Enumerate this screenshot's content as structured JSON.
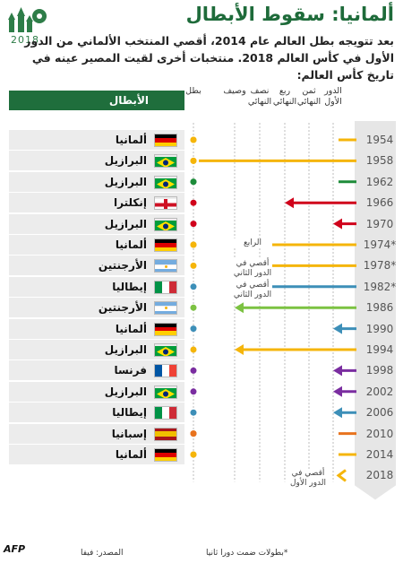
{
  "title": "ألمانيا: سقوط الأبطال",
  "subtitle": "بعد تتويجه بطل العالم عام 2014، أقصي المنتخب الألماني من الدور الأول في كأس العالم 2018. منتخبات أخرى لقيت المصير عينه في تاريخ كأس العالم:",
  "logo": {
    "year": "2018",
    "icon": "world-cup-2018-logo"
  },
  "column_header": "الأبطال",
  "stage_labels": [
    "الدور الأول",
    "ثمن النهائي",
    "ربع النهائي",
    "نصف النهائي",
    "وصيف",
    "بطل"
  ],
  "footer": {
    "note": "*بطولات ضمت دورا ثانيا",
    "source": "المصدر: فيفا",
    "agency": "AFP"
  },
  "colors": {
    "brand_green": "#1f6e3c",
    "first_round_red": "#d0021b",
    "arrow_bg": "#e6e6e6"
  },
  "chart_data": {
    "type": "timeline",
    "title": "ألمانيا: سقوط الأبطال",
    "stages": [
      "الدور الأول",
      "ثمن النهائي",
      "ربع النهائي",
      "نصف النهائي",
      "وصيف",
      "بطل"
    ],
    "rows": [
      {
        "champion_year": "1954",
        "team": "ألمانيا",
        "flag": "germany",
        "color": "#f5b50a",
        "start": "champion",
        "end": "first",
        "end_marker": "circle",
        "note": ""
      },
      {
        "champion_year": "1958",
        "team": "البرازيل",
        "flag": "brazil",
        "color": "#f5b50a",
        "start": "champion",
        "end": "champion",
        "end_marker": "circle",
        "note": ""
      },
      {
        "champion_year": "1962",
        "team": "البرازيل",
        "flag": "brazil",
        "color": "#1e8c3a",
        "start": "champion",
        "end": "first",
        "end_marker": "circle",
        "note": ""
      },
      {
        "champion_year": "1966",
        "team": "إنكلترا",
        "flag": "england",
        "color": "#d0021b",
        "start": "champion",
        "end": "quarter",
        "end_marker": "arrow",
        "note": ""
      },
      {
        "champion_year": "1970",
        "team": "البرازيل",
        "flag": "brazil",
        "color": "#d0021b",
        "start": "champion",
        "end": "first",
        "end_marker": "arrow",
        "note": ""
      },
      {
        "champion_year": "1974*",
        "team": "ألمانيا",
        "flag": "germany",
        "color": "#f5b50a",
        "start": "champion",
        "end": "second_round",
        "end_marker": "circle",
        "note": "الرابع"
      },
      {
        "champion_year": "1978*",
        "team": "الأرجنتين",
        "flag": "argentina",
        "color": "#f5b50a",
        "start": "champion",
        "end": "second_round",
        "end_marker": "arrow",
        "note": "أقصي في الدور الثاني"
      },
      {
        "champion_year": "1982*",
        "team": "إيطاليا",
        "flag": "italy",
        "color": "#3d8fb8",
        "start": "champion",
        "end": "second_round",
        "end_marker": "arrow",
        "note": "أقصي في الدور الثاني"
      },
      {
        "champion_year": "1986",
        "team": "الأرجنتين",
        "flag": "argentina",
        "color": "#7cc242",
        "start": "champion",
        "end": "runner_up",
        "end_marker": "arrow",
        "note": ""
      },
      {
        "champion_year": "1990",
        "team": "ألمانيا",
        "flag": "germany",
        "color": "#3d8fb8",
        "start": "champion",
        "end": "first",
        "end_marker": "arrow",
        "note": ""
      },
      {
        "champion_year": "1994",
        "team": "البرازيل",
        "flag": "brazil",
        "color": "#f5b50a",
        "start": "champion",
        "end": "runner_up",
        "end_marker": "arrow",
        "note": ""
      },
      {
        "champion_year": "1998",
        "team": "فرنسا",
        "flag": "france",
        "color": "#7a2da0",
        "start": "champion",
        "end": "first",
        "end_marker": "arrow",
        "note": ""
      },
      {
        "champion_year": "2002",
        "team": "البرازيل",
        "flag": "brazil",
        "color": "#7a2da0",
        "start": "champion",
        "end": "first",
        "end_marker": "arrow",
        "note": ""
      },
      {
        "champion_year": "2006",
        "team": "إيطاليا",
        "flag": "italy",
        "color": "#3d8fb8",
        "start": "champion",
        "end": "first",
        "end_marker": "arrow",
        "note": ""
      },
      {
        "champion_year": "2010",
        "team": "إسبانيا",
        "flag": "spain",
        "color": "#e8731e",
        "start": "champion",
        "end": "first",
        "end_marker": "circle",
        "note": ""
      },
      {
        "champion_year": "2014",
        "team": "ألمانيا",
        "flag": "germany",
        "color": "#f5b50a",
        "start": "champion",
        "end": "first",
        "end_marker": "circle",
        "note": ""
      },
      {
        "champion_year": "2018",
        "team": "",
        "flag": "",
        "color": "#f5b50a",
        "start": "",
        "end": "first",
        "end_marker": "",
        "note": "أقصي في الدور الأول"
      }
    ],
    "grid": true,
    "legend": "none"
  }
}
